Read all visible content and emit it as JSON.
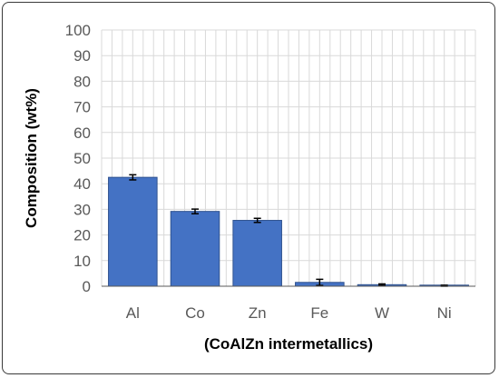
{
  "chart_data": {
    "type": "bar",
    "title": "",
    "xlabel": "(CoAlZn intermetallics)",
    "ylabel": "Composition (wt%)",
    "ylim": [
      0,
      100
    ],
    "yticks": [
      0,
      10,
      20,
      30,
      40,
      50,
      60,
      70,
      80,
      90,
      100
    ],
    "categories": [
      "Al",
      "Co",
      "Zn",
      "Fe",
      "W",
      "Ni"
    ],
    "values": [
      42.5,
      29.2,
      25.7,
      1.5,
      0.6,
      0.2
    ],
    "errors": [
      1.0,
      0.9,
      0.8,
      1.2,
      0.3,
      0.2
    ],
    "grid": true,
    "legend": "none",
    "colors": {
      "bar_fill": "#4472c4",
      "bar_stroke": "#2f528f",
      "grid": "#d9d9d9",
      "axis": "#595959"
    }
  }
}
